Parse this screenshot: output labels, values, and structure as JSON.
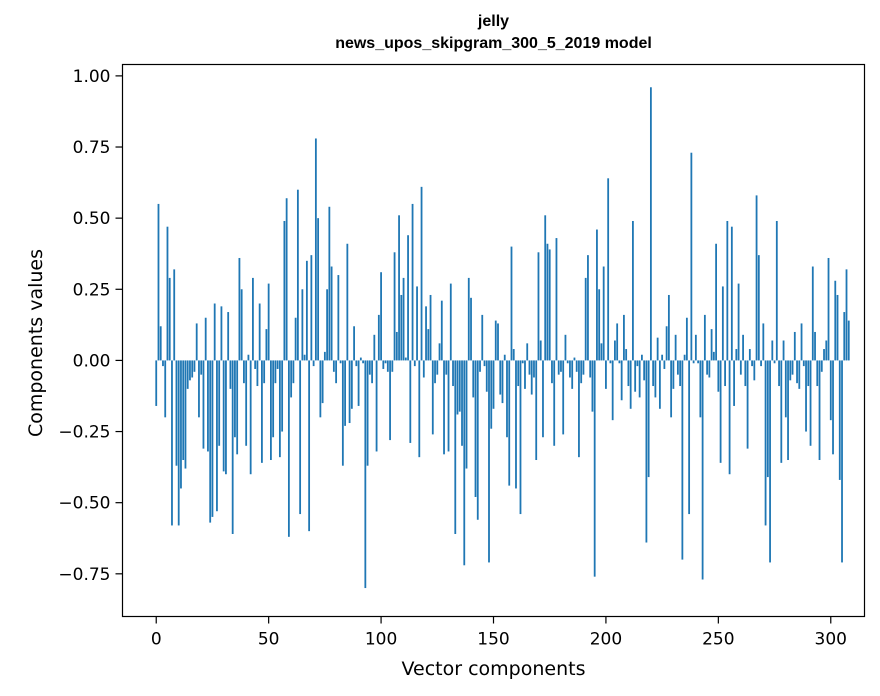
{
  "chart_data": {
    "type": "bar",
    "title": "jelly",
    "subtitle": "news_upos_skipgram_300_5_2019 model",
    "xlabel": "Vector components",
    "ylabel": "Components values",
    "xlim": [
      -15,
      315
    ],
    "ylim": [
      -0.9,
      1.04
    ],
    "xticks": [
      0,
      50,
      100,
      150,
      200,
      250,
      300
    ],
    "yticks": [
      -0.75,
      -0.5,
      -0.25,
      0.0,
      0.25,
      0.5,
      0.75,
      1.0
    ],
    "xtick_labels": [
      "0",
      "50",
      "100",
      "150",
      "200",
      "250",
      "300"
    ],
    "ytick_labels": [
      "−0.75",
      "−0.50",
      "−0.25",
      "0.00",
      "0.25",
      "0.50",
      "0.75",
      "1.00"
    ],
    "bar_color": "#1f77b4",
    "values": [
      -0.16,
      0.55,
      0.12,
      -0.02,
      -0.2,
      0.47,
      0.29,
      -0.58,
      0.32,
      -0.37,
      -0.58,
      -0.45,
      -0.35,
      -0.38,
      -0.1,
      -0.07,
      -0.06,
      -0.04,
      0.13,
      -0.2,
      -0.05,
      -0.31,
      0.15,
      -0.32,
      -0.57,
      -0.55,
      0.2,
      -0.53,
      -0.3,
      0.19,
      -0.39,
      -0.4,
      0.17,
      -0.1,
      -0.61,
      -0.27,
      -0.33,
      0.36,
      0.25,
      -0.08,
      -0.3,
      0.02,
      -0.4,
      0.29,
      -0.03,
      -0.09,
      0.2,
      -0.36,
      -0.08,
      0.11,
      0.27,
      -0.35,
      -0.27,
      -0.08,
      -0.03,
      -0.34,
      -0.25,
      0.49,
      0.57,
      -0.62,
      -0.13,
      -0.08,
      0.15,
      0.6,
      -0.54,
      0.25,
      0.02,
      0.35,
      -0.6,
      0.37,
      -0.02,
      0.78,
      0.5,
      -0.2,
      -0.15,
      0.03,
      0.25,
      0.54,
      0.33,
      -0.04,
      -0.08,
      0.3,
      -0.01,
      -0.37,
      -0.23,
      0.41,
      -0.22,
      -0.17,
      0.12,
      -0.02,
      -0.16,
      0.01,
      -0.01,
      -0.8,
      -0.37,
      -0.05,
      -0.08,
      0.09,
      -0.32,
      0.16,
      0.31,
      -0.03,
      -0.01,
      -0.04,
      -0.28,
      -0.04,
      0.38,
      0.1,
      0.51,
      0.23,
      0.29,
      0.01,
      0.44,
      -0.29,
      0.55,
      -0.02,
      0.26,
      -0.34,
      0.61,
      -0.06,
      0.19,
      0.11,
      0.23,
      -0.26,
      -0.08,
      -0.05,
      0.06,
      0.21,
      -0.33,
      -0.05,
      -0.32,
      0.27,
      -0.09,
      -0.61,
      -0.19,
      -0.18,
      -0.3,
      -0.72,
      -0.38,
      0.29,
      0.22,
      -0.13,
      -0.48,
      -0.56,
      -0.04,
      0.16,
      -0.02,
      -0.11,
      -0.71,
      -0.24,
      -0.17,
      0.14,
      0.13,
      -0.12,
      -0.15,
      0.02,
      -0.27,
      -0.44,
      0.4,
      0.04,
      -0.45,
      -0.09,
      -0.54,
      -0.01,
      -0.1,
      0.06,
      -0.05,
      -0.12,
      -0.06,
      -0.35,
      0.38,
      0.07,
      -0.27,
      0.51,
      0.41,
      0.39,
      -0.08,
      -0.3,
      0.43,
      -0.05,
      -0.04,
      -0.26,
      0.09,
      -0.01,
      -0.06,
      -0.1,
      0.01,
      -0.04,
      -0.34,
      -0.08,
      -0.05,
      0.29,
      0.37,
      -0.06,
      -0.18,
      -0.76,
      0.46,
      0.25,
      0.06,
      0.33,
      -0.1,
      0.64,
      -0.01,
      -0.21,
      0.07,
      0.13,
      -0.01,
      -0.14,
      0.16,
      0.04,
      -0.09,
      -0.17,
      0.49,
      -0.11,
      -0.02,
      -0.13,
      0.02,
      -0.07,
      -0.64,
      -0.41,
      0.96,
      -0.09,
      -0.13,
      0.08,
      -0.17,
      0.02,
      -0.03,
      0.12,
      0.23,
      -0.2,
      -0.1,
      0.09,
      -0.05,
      -0.09,
      -0.7,
      0.02,
      0.15,
      -0.54,
      0.73,
      -0.01,
      0.09,
      -0.01,
      -0.2,
      -0.77,
      0.16,
      -0.05,
      -0.06,
      0.11,
      0.03,
      0.41,
      -0.11,
      -0.36,
      0.26,
      -0.09,
      0.49,
      -0.4,
      0.47,
      -0.16,
      0.04,
      0.27,
      -0.05,
      0.09,
      -0.09,
      -0.31,
      0.04,
      -0.02,
      -0.07,
      0.58,
      0.37,
      -0.02,
      0.13,
      -0.58,
      -0.41,
      -0.71,
      0.07,
      -0.01,
      0.49,
      -0.09,
      -0.36,
      0.07,
      -0.2,
      -0.35,
      -0.07,
      -0.05,
      0.1,
      -0.08,
      -0.1,
      0.13,
      -0.02,
      -0.25,
      -0.09,
      -0.3,
      0.33,
      0.1,
      -0.09,
      -0.35,
      -0.04,
      0.04,
      0.07,
      0.36,
      -0.21,
      -0.33,
      0.28,
      0.23,
      -0.42,
      -0.71,
      0.17,
      0.32,
      0.14
    ]
  }
}
